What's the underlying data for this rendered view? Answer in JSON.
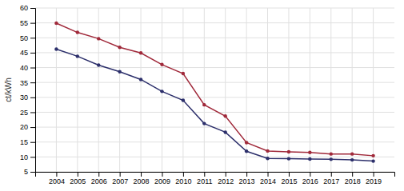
{
  "chart_data": {
    "type": "line",
    "ylabel": "ct/kWh",
    "x": [
      2004,
      2005,
      2006,
      2007,
      2008,
      2009,
      2010,
      2011,
      2012,
      2013,
      2014,
      2015,
      2016,
      2017,
      2018,
      2019
    ],
    "series": [
      {
        "color": "#a0293a",
        "marker": "o",
        "values": [
          54.9,
          51.8,
          49.7,
          46.8,
          44.9,
          41.0,
          38.0,
          27.5,
          23.7,
          14.8,
          12.0,
          11.7,
          11.5,
          11.0,
          11.0,
          10.4
        ]
      },
      {
        "color": "#2c2f6b",
        "marker": "o",
        "values": [
          46.2,
          43.8,
          40.8,
          38.6,
          36.0,
          32.0,
          29.0,
          21.2,
          18.3,
          11.9,
          9.5,
          9.4,
          9.3,
          9.2,
          9.0,
          8.6
        ]
      }
    ],
    "xlim": [
      2003,
      2020
    ],
    "xticks": [
      2004,
      2005,
      2006,
      2007,
      2008,
      2009,
      2010,
      2011,
      2012,
      2013,
      2014,
      2015,
      2016,
      2017,
      2018,
      2019
    ],
    "ylim": [
      5,
      60
    ],
    "yticks": [
      5,
      10,
      15,
      20,
      25,
      30,
      35,
      40,
      45,
      50,
      55,
      60
    ],
    "grid": true
  }
}
